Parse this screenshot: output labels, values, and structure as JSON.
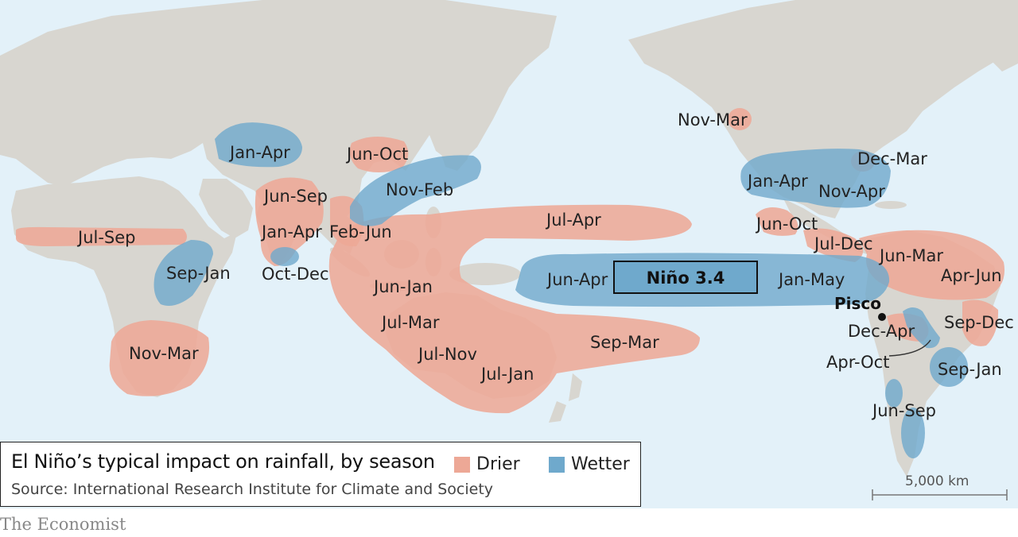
{
  "title": "El Niño’s typical impact on rainfall, by season",
  "source": "Source: International Research Institute for Climate and Society",
  "legend": {
    "drier_label": "Drier",
    "wetter_label": "Wetter"
  },
  "colors": {
    "ocean": "#e3f1f9",
    "land": "#d8d6d0",
    "drier": "#eda896",
    "wetter": "#6fa9cc",
    "brand_red": "#e3120b"
  },
  "regions": {
    "nino_box": "Niño 3.4",
    "pisco": "Pisco",
    "labels": [
      "Jan-Apr",
      "Jun-Oct",
      "Nov-Feb",
      "Jun-Sep",
      "Jan-Apr",
      "Feb-Jun",
      "Oct-Dec",
      "Jul-Sep",
      "Sep-Jan",
      "Nov-Mar",
      "Jul-Apr",
      "Jun-Apr",
      "Jan-May",
      "Jun-Jan",
      "Jul-Mar",
      "Jul-Nov",
      "Jul-Jan",
      "Sep-Mar",
      "Nov-Mar",
      "Dec-Mar",
      "Jan-Apr",
      "Nov-Apr",
      "Jun-Oct",
      "Jul-Dec",
      "Jun-Mar",
      "Apr-Jun",
      "Dec-Apr",
      "Sep-Dec",
      "Apr-Oct",
      "Sep-Jan",
      "Jun-Sep"
    ]
  },
  "scale_bar": {
    "label": "5,000  km"
  },
  "brand": "The Economist"
}
